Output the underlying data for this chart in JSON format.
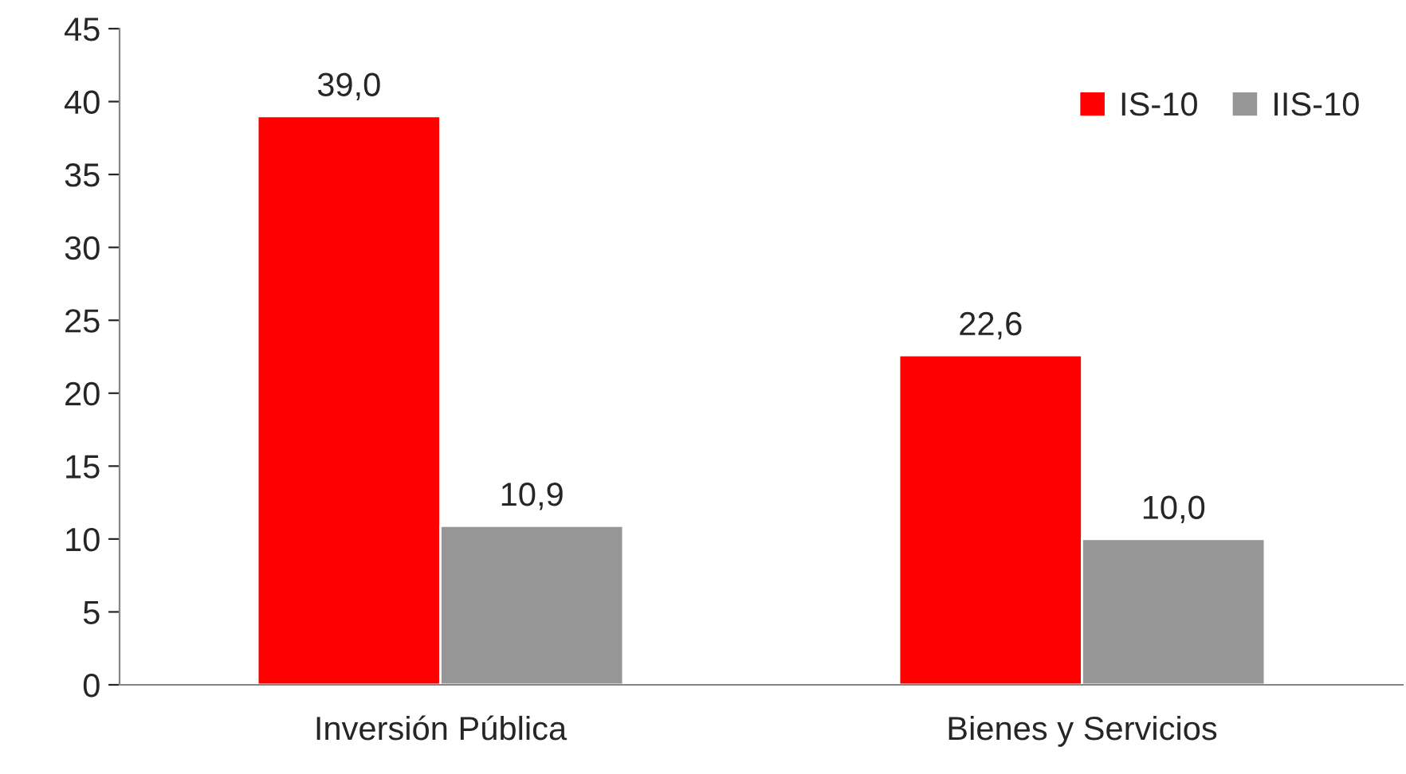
{
  "chart_data": {
    "type": "bar",
    "categories": [
      "Inversión Pública",
      "Bienes y Servicios"
    ],
    "series": [
      {
        "name": "IS-10",
        "color": "#ff0000",
        "values": [
          39.0,
          22.6
        ],
        "value_labels": [
          "39,0",
          "22,6"
        ]
      },
      {
        "name": "IIS-10",
        "color": "#969696",
        "values": [
          10.9,
          10.0
        ],
        "value_labels": [
          "10,9",
          "10,0"
        ]
      }
    ],
    "ylim": [
      0,
      45
    ],
    "yticks": [
      0,
      5,
      10,
      15,
      20,
      25,
      30,
      35,
      40,
      45
    ],
    "grid": false,
    "legend": "top right"
  }
}
